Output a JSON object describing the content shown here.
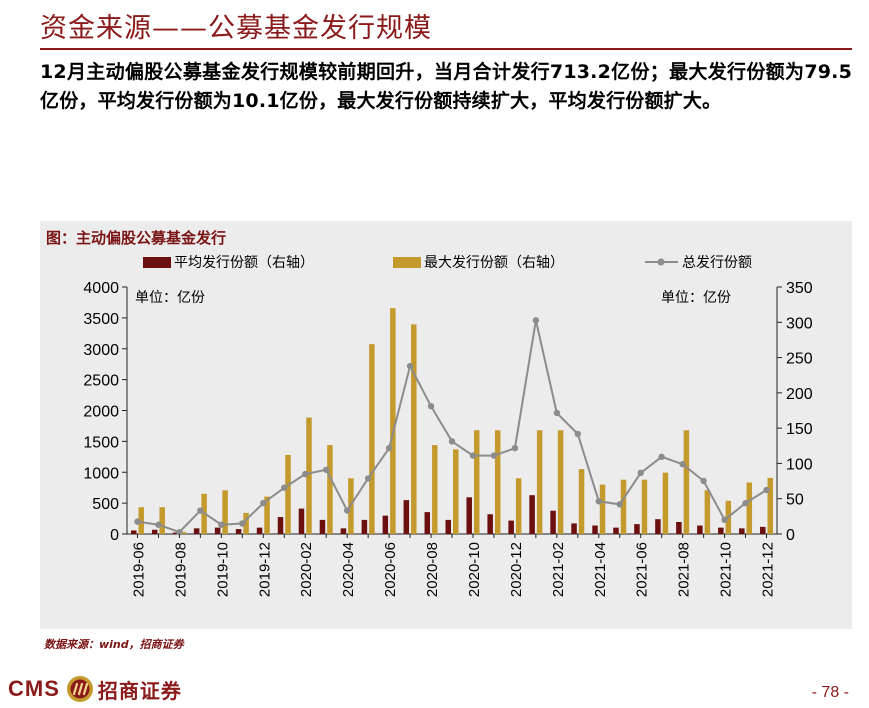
{
  "slide": {
    "title": "资金来源——公募基金发行规模",
    "summary": "12月主动偏股公募基金发行规模较前期回升，当月合计发行713.2亿份；最大发行份额为79.5亿份，平均发行份额为10.1亿份，最大发行份额持续扩大，平均发行份额扩大。",
    "source": "数据来源：wind，招商证券",
    "page_number": "- 78 -",
    "logo_text": "CMS",
    "logo_name": "招商证券"
  },
  "colors": {
    "brand": "#8b1a1a",
    "avg_bar": "#6b0f0f",
    "max_bar": "#c49a2c",
    "total_line": "#8c8c8c",
    "chart_bg": "#ececec"
  },
  "chart_data": {
    "type": "bar",
    "title": "图：主动偏股公募基金发行",
    "left_unit": "单位：亿份",
    "right_unit": "单位：亿份",
    "left_axis": {
      "min": 0,
      "max": 4000,
      "ticks": [
        0,
        500,
        1000,
        1500,
        2000,
        2500,
        3000,
        3500,
        4000
      ]
    },
    "right_axis": {
      "min": 0,
      "max": 350,
      "ticks": [
        0,
        50,
        100,
        150,
        200,
        250,
        300,
        350
      ]
    },
    "categories": [
      "2019-06",
      "2019-07",
      "2019-08",
      "2019-09",
      "2019-10",
      "2019-11",
      "2019-12",
      "2020-01",
      "2020-02",
      "2020-03",
      "2020-04",
      "2020-05",
      "2020-06",
      "2020-07",
      "2020-08",
      "2020-09",
      "2020-10",
      "2020-11",
      "2020-12",
      "2021-01",
      "2021-02",
      "2021-03",
      "2021-04",
      "2021-05",
      "2021-06",
      "2021-07",
      "2021-08",
      "2021-09",
      "2021-10",
      "2021-11",
      "2021-12"
    ],
    "tick_labels": [
      "2019-06",
      "2019-08",
      "2019-10",
      "2019-12",
      "2020-02",
      "2020-04",
      "2020-06",
      "2020-08",
      "2020-10",
      "2020-12",
      "2021-02",
      "2021-04",
      "2021-06",
      "2021-08",
      "2021-10",
      "2021-12"
    ],
    "series": [
      {
        "name": "平均发行份额（右轴）",
        "axis": "right",
        "kind": "bar",
        "values": [
          5,
          6,
          2,
          8,
          9,
          7,
          9,
          24,
          36,
          20,
          8,
          20,
          26,
          48,
          31,
          20,
          52,
          28,
          19,
          55,
          33,
          15,
          12,
          9,
          14,
          21,
          17,
          12,
          9,
          8,
          10.1
        ]
      },
      {
        "name": "最大发行份额（右轴）",
        "axis": "right",
        "kind": "bar",
        "values": [
          38,
          38,
          3,
          57,
          62,
          30,
          53,
          112,
          165,
          126,
          79,
          269,
          320,
          297,
          126,
          120,
          147,
          147,
          79,
          147,
          147,
          92,
          70,
          77,
          77,
          87,
          147,
          62,
          47,
          73,
          79.5
        ]
      },
      {
        "name": "总发行份额",
        "axis": "left",
        "kind": "line",
        "values": [
          200,
          150,
          30,
          380,
          150,
          170,
          500,
          750,
          970,
          1040,
          380,
          900,
          1390,
          2720,
          2070,
          1500,
          1270,
          1270,
          1390,
          3460,
          1960,
          1620,
          530,
          480,
          990,
          1250,
          1130,
          860,
          230,
          500,
          713.2
        ]
      }
    ]
  }
}
